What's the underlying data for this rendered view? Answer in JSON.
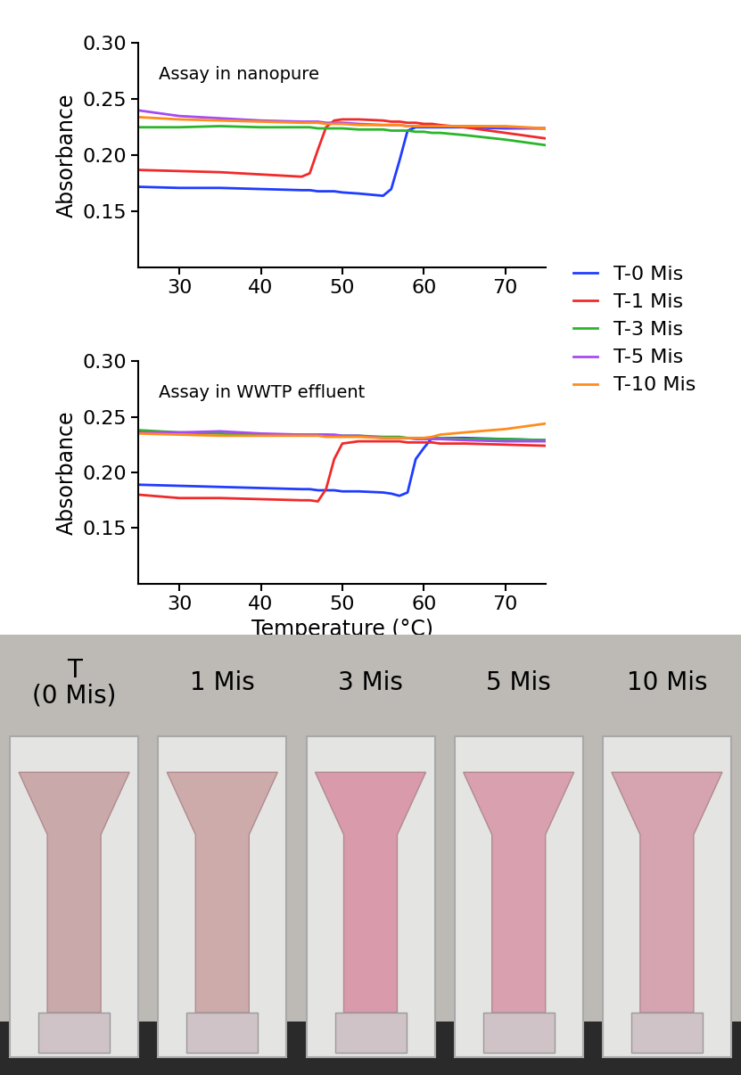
{
  "chart_data": [
    {
      "type": "line",
      "annotation": "Assay in nanopure",
      "y_label": "Absorbance",
      "legend": "center left",
      "x": [
        25,
        30,
        35,
        40,
        45,
        46,
        47,
        48,
        49,
        50,
        52,
        55,
        56,
        57,
        58,
        59,
        60,
        61,
        62,
        65,
        70,
        75
      ],
      "xlim": [
        25,
        75
      ],
      "xticks": [
        30,
        40,
        50,
        60,
        70
      ],
      "ylim": [
        0.1,
        0.3
      ],
      "yticks": [
        0.15,
        {
          "value": 0.2,
          "label": "0.20"
        },
        0.25,
        {
          "value": 0.3,
          "label": "0.30"
        }
      ],
      "series": [
        {
          "name": "T-0 Mis",
          "color": "#1f3cff",
          "values": [
            0.172,
            0.171,
            0.171,
            0.17,
            0.169,
            0.169,
            0.168,
            0.168,
            0.168,
            0.167,
            0.166,
            0.164,
            0.17,
            0.195,
            0.222,
            0.225,
            0.225,
            0.225,
            0.225,
            0.225,
            0.224,
            0.224
          ]
        },
        {
          "name": "T-1 Mis",
          "color": "#f02a2a",
          "values": [
            0.187,
            0.186,
            0.185,
            0.183,
            0.181,
            0.184,
            0.205,
            0.225,
            0.231,
            0.232,
            0.232,
            0.231,
            0.23,
            0.23,
            0.229,
            0.229,
            0.228,
            0.228,
            0.227,
            0.225,
            0.22,
            0.215
          ]
        },
        {
          "name": "T-3 Mis",
          "color": "#2ab62a",
          "values": [
            0.225,
            0.225,
            0.226,
            0.225,
            0.225,
            0.225,
            0.224,
            0.224,
            0.224,
            0.224,
            0.223,
            0.223,
            0.222,
            0.222,
            0.222,
            0.221,
            0.221,
            0.22,
            0.22,
            0.218,
            0.214,
            0.209
          ]
        },
        {
          "name": "T-5 Mis",
          "color": "#a64bf4",
          "values": [
            0.24,
            0.235,
            0.233,
            0.231,
            0.23,
            0.23,
            0.23,
            0.229,
            0.229,
            0.229,
            0.228,
            0.227,
            0.227,
            0.227,
            0.226,
            0.226,
            0.226,
            0.226,
            0.226,
            0.226,
            0.225,
            0.224
          ]
        },
        {
          "name": "T-10 Mis",
          "color": "#ff8c1a",
          "values": [
            0.234,
            0.232,
            0.231,
            0.23,
            0.229,
            0.229,
            0.229,
            0.228,
            0.228,
            0.228,
            0.227,
            0.227,
            0.227,
            0.227,
            0.226,
            0.226,
            0.226,
            0.226,
            0.226,
            0.226,
            0.226,
            0.224
          ]
        }
      ]
    },
    {
      "type": "line",
      "annotation": "Assay in WWTP effluent",
      "y_label": "Absorbance",
      "x_label": "Temperature (°C)",
      "x": [
        25,
        30,
        35,
        40,
        45,
        46,
        47,
        48,
        49,
        50,
        52,
        55,
        56,
        57,
        58,
        59,
        60,
        61,
        62,
        65,
        70,
        75
      ],
      "xlim": [
        25,
        75
      ],
      "xticks": [
        30,
        40,
        50,
        60,
        70
      ],
      "ylim": [
        0.1,
        0.3
      ],
      "yticks": [
        0.15,
        {
          "value": 0.2,
          "label": "0.20"
        },
        0.25,
        {
          "value": 0.3,
          "label": "0.30"
        }
      ],
      "series": [
        {
          "name": "T-0 Mis",
          "color": "#1f3cff",
          "values": [
            0.189,
            0.188,
            0.187,
            0.186,
            0.185,
            0.185,
            0.184,
            0.184,
            0.184,
            0.183,
            0.183,
            0.182,
            0.181,
            0.179,
            0.182,
            0.212,
            0.222,
            0.231,
            0.231,
            0.231,
            0.23,
            0.229
          ]
        },
        {
          "name": "T-1 Mis",
          "color": "#f02a2a",
          "values": [
            0.18,
            0.177,
            0.177,
            0.176,
            0.175,
            0.175,
            0.174,
            0.185,
            0.212,
            0.226,
            0.228,
            0.228,
            0.228,
            0.228,
            0.227,
            0.227,
            0.227,
            0.227,
            0.226,
            0.226,
            0.225,
            0.224
          ]
        },
        {
          "name": "T-3 Mis",
          "color": "#2ab62a",
          "values": [
            0.238,
            0.236,
            0.235,
            0.234,
            0.234,
            0.234,
            0.234,
            0.234,
            0.233,
            0.233,
            0.233,
            0.232,
            0.232,
            0.232,
            0.231,
            0.231,
            0.231,
            0.231,
            0.231,
            0.23,
            0.23,
            0.229
          ]
        },
        {
          "name": "T-5 Mis",
          "color": "#a64bf4",
          "values": [
            0.236,
            0.236,
            0.237,
            0.235,
            0.234,
            0.234,
            0.234,
            0.234,
            0.234,
            0.233,
            0.233,
            0.231,
            0.231,
            0.231,
            0.231,
            0.23,
            0.23,
            0.23,
            0.23,
            0.229,
            0.228,
            0.228
          ]
        },
        {
          "name": "T-10 Mis",
          "color": "#ff8c1a",
          "values": [
            0.235,
            0.234,
            0.233,
            0.233,
            0.233,
            0.233,
            0.233,
            0.232,
            0.232,
            0.232,
            0.232,
            0.231,
            0.231,
            0.231,
            0.231,
            0.231,
            0.231,
            0.232,
            0.234,
            0.236,
            0.239,
            0.244
          ]
        }
      ]
    }
  ],
  "photo": {
    "cuvettes": [
      {
        "label": "T\n(0 Mis)",
        "color": "#c9a9a9"
      },
      {
        "label": "1 Mis",
        "color": "#cdabab"
      },
      {
        "label": "3 Mis",
        "color": "#d99aac"
      },
      {
        "label": "5 Mis",
        "color": "#d9a0b0"
      },
      {
        "label": "10 Mis",
        "color": "#d6a3b0"
      }
    ]
  }
}
